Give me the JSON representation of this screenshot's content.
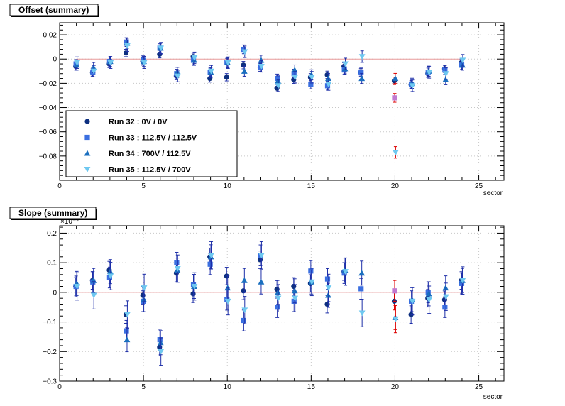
{
  "chart_data": [
    {
      "type": "scatter",
      "title": "Offset (summary)",
      "xlabel": "sector",
      "ylabel": "",
      "ylim": [
        -0.1,
        0.03
      ],
      "xlim": [
        0,
        26.5
      ],
      "y_tick_labels": [
        "0.02",
        "0",
        "−0.02",
        "−0.04",
        "−0.06",
        "−0.08"
      ],
      "x_tick_labels": [
        "0",
        "5",
        "10",
        "15",
        "20",
        "25"
      ],
      "y_ticks": [
        0.02,
        0,
        -0.02,
        -0.04,
        -0.06,
        -0.08
      ],
      "x_ticks": [
        0,
        5,
        10,
        15,
        20,
        25
      ],
      "grid": true,
      "legend_position": "bottom-left",
      "reference_line": {
        "y": 0,
        "x_range": [
          1,
          24
        ],
        "color": "#e89a9a"
      },
      "highlight": {
        "x": 20,
        "color": "#dd0000"
      },
      "series": [
        {
          "name": "Run 32 : 0V / 0V",
          "marker": "circle",
          "color": "#0d2f7f",
          "points": [
            [
              1,
              -0.006
            ],
            [
              2,
              -0.011
            ],
            [
              3,
              -0.004
            ],
            [
              4,
              0.005
            ],
            [
              5,
              -0.002
            ],
            [
              6,
              0.004
            ],
            [
              7,
              -0.014
            ],
            [
              8,
              0.002
            ],
            [
              9,
              -0.016
            ],
            [
              10,
              -0.015
            ],
            [
              11,
              -0.005
            ],
            [
              12,
              -0.007
            ],
            [
              13,
              -0.024
            ],
            [
              14,
              -0.017
            ],
            [
              15,
              -0.015
            ],
            [
              16,
              -0.013
            ],
            [
              17,
              -0.006
            ],
            [
              18,
              -0.011
            ],
            [
              20,
              -0.018
            ],
            [
              21,
              -0.021
            ],
            [
              22,
              -0.012
            ],
            [
              23,
              -0.008
            ],
            [
              24,
              -0.003
            ]
          ]
        },
        {
          "name": "Run 33 : 112.5V / 112.5V",
          "marker": "square",
          "color": "#3b6fe0",
          "points": [
            [
              1,
              -0.004
            ],
            [
              2,
              -0.011
            ],
            [
              3,
              -0.002
            ],
            [
              4,
              0.014
            ],
            [
              5,
              -0.001
            ],
            [
              6,
              0.009
            ],
            [
              7,
              -0.012
            ],
            [
              8,
              -0.001
            ],
            [
              9,
              -0.011
            ],
            [
              10,
              -0.003
            ],
            [
              11,
              0.008
            ],
            [
              12,
              -0.007
            ],
            [
              13,
              -0.016
            ],
            [
              14,
              -0.012
            ],
            [
              15,
              -0.021
            ],
            [
              16,
              -0.022
            ],
            [
              17,
              -0.009
            ],
            [
              18,
              -0.011
            ],
            [
              20,
              -0.032
            ],
            [
              21,
              -0.021
            ],
            [
              22,
              -0.011
            ],
            [
              23,
              -0.009
            ],
            [
              24,
              -0.005
            ]
          ]
        },
        {
          "name": "Run 34 : 700V / 112.5V",
          "marker": "triangle-up",
          "color": "#1a6fbf",
          "points": [
            [
              1,
              -0.005
            ],
            [
              2,
              -0.007
            ],
            [
              3,
              -0.002
            ],
            [
              4,
              0.013
            ],
            [
              5,
              -0.002
            ],
            [
              6,
              0.009
            ],
            [
              7,
              -0.011
            ],
            [
              8,
              -0.001
            ],
            [
              9,
              -0.011
            ],
            [
              10,
              -0.003
            ],
            [
              11,
              -0.01
            ],
            [
              12,
              -0.001
            ],
            [
              13,
              -0.018
            ],
            [
              14,
              -0.009
            ],
            [
              15,
              -0.013
            ],
            [
              16,
              -0.016
            ],
            [
              17,
              -0.008
            ],
            [
              18,
              -0.016
            ],
            [
              20,
              -0.016
            ],
            [
              21,
              -0.02
            ],
            [
              22,
              -0.01
            ],
            [
              23,
              -0.017
            ],
            [
              24,
              -0.005
            ]
          ]
        },
        {
          "name": "Run 35 : 112.5V / 700V",
          "marker": "triangle-down",
          "color": "#6ec8f0",
          "points": [
            [
              1,
              -0.003
            ],
            [
              2,
              -0.01
            ],
            [
              3,
              -0.003
            ],
            [
              4,
              0.011
            ],
            [
              5,
              -0.003
            ],
            [
              6,
              0.009
            ],
            [
              7,
              -0.014
            ],
            [
              8,
              0.001
            ],
            [
              9,
              -0.01
            ],
            [
              10,
              -0.003
            ],
            [
              11,
              0.006
            ],
            [
              12,
              -0.006
            ],
            [
              13,
              -0.022
            ],
            [
              14,
              -0.015
            ],
            [
              15,
              -0.015
            ],
            [
              16,
              -0.021
            ],
            [
              17,
              -0.004
            ],
            [
              18,
              0.002
            ],
            [
              20,
              -0.077
            ],
            [
              21,
              -0.022
            ],
            [
              22,
              -0.011
            ],
            [
              23,
              -0.012
            ],
            [
              24,
              -0.001
            ]
          ]
        }
      ]
    },
    {
      "type": "scatter",
      "title": "Slope (summary)",
      "xlabel": "sector",
      "ylabel": "",
      "exponent_label": "×10⁻³",
      "ylim": [
        -0.3,
        0.225
      ],
      "xlim": [
        0,
        26.5
      ],
      "y_tick_labels": [
        "0.2",
        "0.1",
        "0",
        "−0.1",
        "−0.2",
        "−0.3"
      ],
      "x_tick_labels": [
        "0",
        "5",
        "10",
        "15",
        "20",
        "25"
      ],
      "y_ticks": [
        0.2,
        0.1,
        0,
        -0.1,
        -0.2,
        -0.3
      ],
      "x_ticks": [
        0,
        5,
        10,
        15,
        20,
        25
      ],
      "grid": true,
      "reference_line": {
        "y": 0,
        "x_range": [
          1,
          24
        ],
        "color": "#e89a9a"
      },
      "highlight": {
        "x": 20,
        "color": "#dd0000"
      },
      "series": [
        {
          "name": "Run 32 : 0V / 0V",
          "marker": "circle",
          "color": "#0d2f7f",
          "points": [
            [
              1,
              0.02
            ],
            [
              2,
              0.04
            ],
            [
              3,
              0.075
            ],
            [
              4,
              -0.075
            ],
            [
              5,
              -0.01
            ],
            [
              6,
              -0.185
            ],
            [
              7,
              0.065
            ],
            [
              8,
              -0.005
            ],
            [
              9,
              0.12
            ],
            [
              10,
              0.055
            ],
            [
              11,
              0.005
            ],
            [
              12,
              0.11
            ],
            [
              13,
              0.01
            ],
            [
              14,
              0.02
            ],
            [
              15,
              0.03
            ],
            [
              16,
              -0.04
            ],
            [
              17,
              0.07
            ],
            [
              20,
              -0.03
            ],
            [
              21,
              -0.075
            ],
            [
              22,
              -0.02
            ],
            [
              23,
              -0.025
            ],
            [
              24,
              0.04
            ]
          ]
        },
        {
          "name": "Run 33 : 112.5V / 112.5V",
          "marker": "square",
          "color": "#3b6fe0",
          "points": [
            [
              1,
              0.02
            ],
            [
              2,
              0.035
            ],
            [
              3,
              0.05
            ],
            [
              4,
              -0.13
            ],
            [
              5,
              -0.03
            ],
            [
              6,
              -0.16
            ],
            [
              7,
              0.1
            ],
            [
              8,
              0.025
            ],
            [
              9,
              0.095
            ],
            [
              10,
              -0.025
            ],
            [
              11,
              -0.095
            ],
            [
              12,
              0.125
            ],
            [
              13,
              -0.05
            ],
            [
              14,
              -0.03
            ],
            [
              15,
              0.072
            ],
            [
              16,
              0.045
            ],
            [
              17,
              0.065
            ],
            [
              18,
              0.012
            ],
            [
              20,
              0.005
            ],
            [
              21,
              -0.03
            ],
            [
              22,
              0.0
            ],
            [
              23,
              -0.05
            ],
            [
              24,
              0.03
            ]
          ]
        },
        {
          "name": "Run 34 : 700V / 112.5V",
          "marker": "triangle-up",
          "color": "#1a6fbf",
          "points": [
            [
              1,
              0.03
            ],
            [
              2,
              0.04
            ],
            [
              3,
              0.07
            ],
            [
              4,
              -0.16
            ],
            [
              5,
              -0.025
            ],
            [
              6,
              -0.17
            ],
            [
              7,
              0.075
            ],
            [
              8,
              0.02
            ],
            [
              9,
              0.12
            ],
            [
              10,
              0.015
            ],
            [
              11,
              0.04
            ],
            [
              12,
              0.035
            ],
            [
              13,
              0.0
            ],
            [
              14,
              0.005
            ],
            [
              15,
              0.035
            ],
            [
              16,
              -0.01
            ],
            [
              17,
              0.075
            ],
            [
              18,
              0.065
            ],
            [
              20,
              -0.085
            ],
            [
              21,
              -0.025
            ],
            [
              22,
              -0.005
            ],
            [
              23,
              0.015
            ],
            [
              24,
              0.04
            ]
          ]
        },
        {
          "name": "Run 35 : 112.5V / 700V",
          "marker": "triangle-down",
          "color": "#6ec8f0",
          "points": [
            [
              1,
              0.02
            ],
            [
              2,
              -0.01
            ],
            [
              3,
              0.055
            ],
            [
              4,
              -0.075
            ],
            [
              5,
              0.015
            ],
            [
              6,
              -0.2
            ],
            [
              7,
              0.08
            ],
            [
              8,
              0.02
            ],
            [
              9,
              0.125
            ],
            [
              10,
              -0.03
            ],
            [
              11,
              -0.06
            ],
            [
              12,
              0.125
            ],
            [
              13,
              -0.02
            ],
            [
              14,
              -0.02
            ],
            [
              15,
              0.035
            ],
            [
              16,
              0.015
            ],
            [
              17,
              0.07
            ],
            [
              18,
              -0.07
            ],
            [
              20,
              -0.09
            ],
            [
              21,
              -0.03
            ],
            [
              22,
              -0.025
            ],
            [
              23,
              -0.015
            ],
            [
              24,
              0.04
            ]
          ]
        }
      ]
    }
  ]
}
